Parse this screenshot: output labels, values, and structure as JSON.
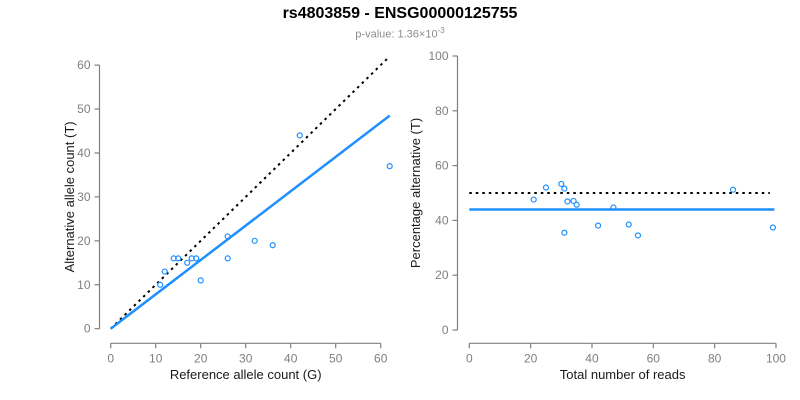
{
  "header": {
    "title": "rs4803859 - ENSG00000125755",
    "subtitle_prefix": "p-value: ",
    "subtitle_mantissa": "1.36×10",
    "subtitle_exponent": "-3"
  },
  "colors": {
    "points": "#1E90FF",
    "regression_line": "#1E90FF",
    "reference_line": "#000000",
    "axis": "#808080",
    "tick_label": "#7f7f7f",
    "axis_title": "#1a1a1a",
    "title": "#000000",
    "subtitle": "#8c8c8c"
  },
  "chart_data": [
    {
      "type": "scatter",
      "name": "allele-counts",
      "xlabel": "Reference allele count (G)",
      "ylabel": "Alternative allele count (T)",
      "xlim": [
        0,
        62
      ],
      "ylim": [
        0,
        62
      ],
      "xticks": [
        0,
        10,
        20,
        30,
        40,
        50,
        60
      ],
      "yticks": [
        0,
        10,
        20,
        30,
        40,
        50,
        60
      ],
      "grid": false,
      "points": [
        [
          11,
          10
        ],
        [
          12,
          13
        ],
        [
          14,
          16
        ],
        [
          15,
          16
        ],
        [
          17,
          15
        ],
        [
          18,
          16
        ],
        [
          19,
          16
        ],
        [
          20,
          11
        ],
        [
          26,
          16
        ],
        [
          26,
          21
        ],
        [
          32,
          20
        ],
        [
          36,
          19
        ],
        [
          42,
          44
        ],
        [
          62,
          37
        ]
      ],
      "lines": [
        {
          "name": "identity-line",
          "style": "dotted",
          "color": "#000000",
          "x1": 0,
          "y1": 0,
          "x2": 62,
          "y2": 62
        },
        {
          "name": "regression-line",
          "style": "solid",
          "color": "#1E90FF",
          "x1": 0,
          "y1": 0,
          "x2": 62,
          "y2": 48.5
        }
      ]
    },
    {
      "type": "scatter",
      "name": "percentage-vs-reads",
      "xlabel": "Total number of reads",
      "ylabel": "Percentage alternative (T)",
      "xlim": [
        0,
        100
      ],
      "ylim": [
        0,
        100
      ],
      "xticks": [
        0,
        20,
        40,
        60,
        80,
        100
      ],
      "yticks": [
        0,
        20,
        40,
        60,
        80,
        100
      ],
      "grid": false,
      "points": [
        [
          21,
          47.6
        ],
        [
          25,
          52.0
        ],
        [
          30,
          53.3
        ],
        [
          31,
          51.6
        ],
        [
          31,
          35.5
        ],
        [
          32,
          46.9
        ],
        [
          34,
          47.1
        ],
        [
          35,
          45.7
        ],
        [
          42,
          38.1
        ],
        [
          47,
          44.7
        ],
        [
          52,
          38.5
        ],
        [
          55,
          34.5
        ],
        [
          86,
          51.2
        ],
        [
          99,
          37.4
        ]
      ],
      "lines": [
        {
          "name": "expected-50pct-line",
          "style": "dotted",
          "color": "#000000",
          "x1": 0,
          "y1": 50,
          "x2": 98,
          "y2": 50
        },
        {
          "name": "mean-percentage-line",
          "style": "solid",
          "color": "#1E90FF",
          "x1": 0,
          "y1": 44,
          "x2": 99.5,
          "y2": 44
        }
      ]
    }
  ]
}
